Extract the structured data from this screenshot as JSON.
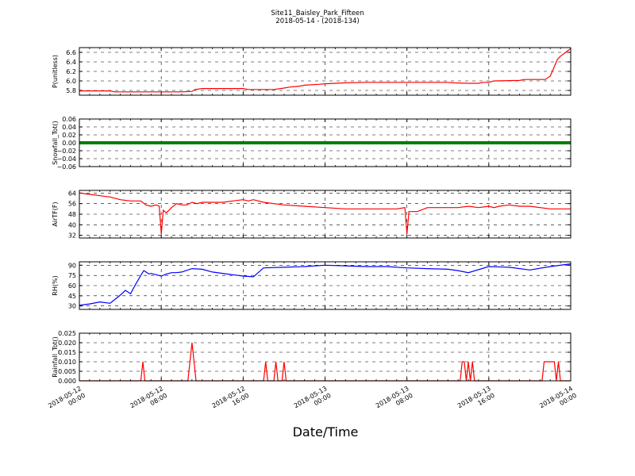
{
  "chart_data": {
    "type": "line",
    "title": "Site11_Baisley_Park_Fifteen",
    "subtitle": "2018-05-14 - (2018-134)",
    "xlabel": "Date/Time",
    "x_tick_labels": [
      [
        "2018-05-12",
        "00:00"
      ],
      [
        "2018-05-12",
        "08:00"
      ],
      [
        "2018-05-12",
        "16:00"
      ],
      [
        "2018-05-13",
        "00:00"
      ],
      [
        "2018-05-13",
        "08:00"
      ],
      [
        "2018-05-13",
        "16:00"
      ],
      [
        "2018-05-14",
        "00:00"
      ]
    ],
    "xlim_hours": [
      0,
      48
    ],
    "grid": true,
    "panels": [
      {
        "ylabel": "P(unitless)",
        "color": "#ff0000",
        "ylim": [
          5.7,
          6.7
        ],
        "yticks": [
          5.8,
          6.0,
          6.2,
          6.4,
          6.6
        ],
        "tick_labels": [
          "5.8",
          "6.0",
          "6.2",
          "6.4",
          "6.6"
        ],
        "x_hours": [
          0,
          3,
          3.5,
          6,
          10,
          11,
          11.3,
          12,
          16,
          16.5,
          17,
          19,
          20,
          20.5,
          21.5,
          22,
          23.5,
          24,
          26,
          28,
          32,
          36,
          36.5,
          38,
          39,
          39.5,
          40,
          40.5,
          43,
          43.5,
          45.5,
          46,
          46.3,
          46.7,
          47,
          47.5,
          48
        ],
        "y": [
          5.79,
          5.79,
          5.77,
          5.77,
          5.77,
          5.78,
          5.82,
          5.84,
          5.84,
          5.82,
          5.82,
          5.82,
          5.85,
          5.87,
          5.89,
          5.91,
          5.93,
          5.94,
          5.96,
          5.97,
          5.97,
          5.97,
          5.96,
          5.95,
          5.95,
          5.97,
          5.97,
          6.0,
          6.01,
          6.03,
          6.03,
          6.1,
          6.25,
          6.45,
          6.52,
          6.6,
          6.68
        ]
      },
      {
        "ylabel": "Snowfall_Tot()",
        "color": "#007f00",
        "ylim": [
          -0.06,
          0.06
        ],
        "yticks": [
          -0.06,
          -0.04,
          -0.02,
          0.0,
          0.02,
          0.04,
          0.06
        ],
        "tick_labels": [
          "−0.06",
          "−0.04",
          "−0.02",
          "0.00",
          "0.02",
          "0.04",
          "0.06"
        ],
        "x_hours": [
          0,
          48
        ],
        "y": [
          0.0,
          0.0
        ]
      },
      {
        "ylabel": "AirTF(F)",
        "color": "#ff0000",
        "ylim": [
          30,
          66
        ],
        "yticks": [
          32,
          40,
          48,
          56,
          64
        ],
        "tick_labels": [
          "32",
          "40",
          "48",
          "56",
          "64"
        ],
        "x_hours": [
          0,
          1,
          3,
          4,
          5,
          6,
          6.5,
          7,
          7.5,
          7.8,
          8,
          8.2,
          8.5,
          9,
          9.5,
          10,
          10.5,
          11,
          11.5,
          12,
          13,
          14,
          15,
          16,
          16.5,
          17,
          18,
          20,
          22,
          24,
          26,
          28,
          30,
          31,
          31.8,
          32,
          32.2,
          33,
          34,
          35,
          36,
          37,
          38,
          39,
          40,
          40.5,
          41,
          42,
          43,
          44,
          46,
          48
        ],
        "y": [
          64,
          63,
          61,
          59,
          58,
          58,
          55,
          54,
          55,
          54,
          33,
          51,
          49,
          53,
          56,
          55,
          55,
          57,
          56,
          57,
          57,
          57,
          58,
          59,
          58,
          59,
          57,
          55,
          54,
          53,
          52,
          52,
          52,
          52,
          53,
          33,
          50,
          50,
          53,
          53,
          53,
          53,
          54,
          53,
          54,
          53,
          54,
          55,
          54,
          54,
          52,
          52
        ]
      },
      {
        "ylabel": "RH(%)",
        "color": "#0000ff",
        "ylim": [
          25,
          95
        ],
        "yticks": [
          30,
          45,
          60,
          75,
          90
        ],
        "tick_labels": [
          "30",
          "45",
          "60",
          "75",
          "90"
        ],
        "x_hours": [
          0,
          1,
          2,
          3,
          3.5,
          4,
          4.5,
          5,
          5.5,
          6,
          6.3,
          6.8,
          7,
          7.5,
          8,
          8.5,
          9,
          9.5,
          10,
          11,
          12,
          13,
          14,
          15,
          16,
          17,
          18,
          20,
          22,
          24,
          26,
          28,
          30,
          32,
          34,
          36,
          37,
          38,
          40,
          42,
          44,
          46,
          48
        ],
        "y": [
          31,
          33,
          36,
          34,
          40,
          46,
          53,
          48,
          62,
          75,
          82,
          77,
          78,
          76,
          74,
          77,
          79,
          79,
          80,
          85,
          84,
          80,
          78,
          76,
          74,
          73,
          86,
          87,
          88,
          90,
          89,
          88,
          88,
          86,
          85,
          84,
          82,
          79,
          88,
          87,
          83,
          88,
          92
        ]
      },
      {
        "ylabel": "Rainfall_Tot()",
        "color": "#ff0000",
        "ylim": [
          0.0,
          0.025
        ],
        "yticks": [
          0.0,
          0.005,
          0.01,
          0.015,
          0.02,
          0.025
        ],
        "tick_labels": [
          "0.000",
          "0.005",
          "0.010",
          "0.015",
          "0.020",
          "0.025"
        ],
        "x_hours": [
          0,
          6.0,
          6.2,
          6.4,
          10.6,
          11.0,
          11.4,
          18.0,
          18.2,
          18.4,
          19.0,
          19.2,
          19.4,
          19.8,
          20.0,
          20.2,
          37.2,
          37.4,
          37.6,
          37.8,
          38.0,
          38.2,
          38.4,
          38.6,
          45.2,
          45.4,
          46.4,
          46.6,
          46.8,
          47.0,
          48
        ],
        "y": [
          0,
          0,
          0.01,
          0,
          0,
          0.02,
          0,
          0,
          0.01,
          0,
          0,
          0.01,
          0,
          0,
          0.01,
          0,
          0,
          0.01,
          0.01,
          0,
          0.01,
          0,
          0.01,
          0,
          0,
          0.01,
          0.01,
          0,
          0.01,
          0,
          0
        ]
      }
    ]
  }
}
